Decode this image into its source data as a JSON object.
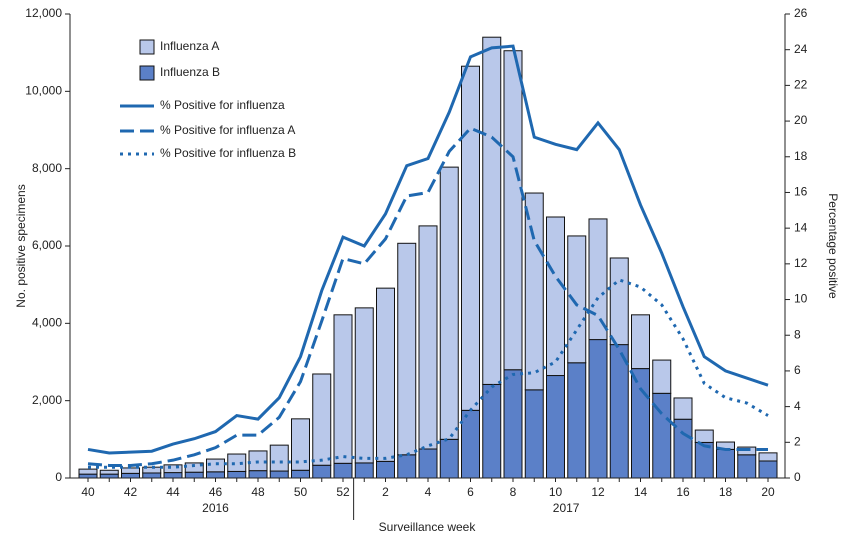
{
  "chart_data": {
    "type": "bar_line",
    "xlabel": "Surveillance week",
    "ylabel": "No. positive specimens",
    "y2label": "Percentage positive",
    "year_labels": [
      "2016",
      "2017"
    ],
    "categories": [
      "40",
      null,
      "42",
      null,
      "44",
      null,
      "46",
      null,
      "48",
      null,
      "50",
      null,
      "52",
      null,
      "2",
      null,
      "4",
      null,
      "6",
      null,
      "8",
      null,
      "10",
      null,
      "12",
      null,
      "14",
      null,
      "16",
      null,
      "18",
      null,
      "20"
    ],
    "ylim": [
      0,
      12000
    ],
    "yticks": [
      0,
      {
        "value": 2000,
        "label": "2,000"
      },
      {
        "value": 4000,
        "label": "4,000"
      },
      {
        "value": 6000,
        "label": "6,000"
      },
      {
        "value": 8000,
        "label": "8,000"
      },
      {
        "value": 10000,
        "label": "10,000"
      },
      {
        "value": 12000,
        "label": "12,000"
      }
    ],
    "y2lim": [
      0,
      26
    ],
    "y2ticks": [
      0,
      2,
      4,
      6,
      8,
      10,
      12,
      14,
      16,
      18,
      20,
      22,
      24,
      26
    ],
    "series": [
      {
        "name": "Influenza A",
        "kind": "bar",
        "stack": 1,
        "color": "#b9c8ea",
        "values": [
          130,
          100,
          140,
          150,
          200,
          240,
          330,
          450,
          510,
          670,
          1330,
          2360,
          3840,
          4010,
          4480,
          5470,
          5770,
          7040,
          8900,
          8980,
          8250,
          5090,
          4100,
          3280,
          3120,
          2240,
          1390,
          860,
          550,
          320,
          190,
          200,
          210
        ]
      },
      {
        "name": "Influenza B",
        "kind": "bar",
        "stack": 0,
        "color": "#5b80c8",
        "values": [
          100,
          100,
          120,
          130,
          140,
          150,
          160,
          170,
          190,
          180,
          200,
          330,
          380,
          390,
          430,
          600,
          750,
          1000,
          1750,
          2420,
          2800,
          2280,
          2650,
          2980,
          3580,
          3450,
          2830,
          2190,
          1520,
          920,
          740,
          600,
          440
        ]
      },
      {
        "name": "% Positive for influenza",
        "kind": "line",
        "axis": "y2",
        "dash": "solid",
        "color": "#1f68b0",
        "values": [
          1.6,
          1.4,
          1.45,
          1.5,
          1.9,
          2.2,
          2.6,
          3.5,
          3.3,
          4.5,
          6.8,
          10.5,
          13.5,
          13.0,
          14.8,
          17.5,
          17.9,
          20.5,
          23.6,
          24.1,
          24.2,
          19.1,
          18.7,
          18.4,
          19.9,
          18.4,
          15.3,
          12.6,
          9.6,
          6.8,
          6.0,
          5.6,
          5.2
        ]
      },
      {
        "name": "% Positive for influenza A",
        "kind": "line",
        "axis": "y2",
        "dash": "dashed",
        "color": "#1f68b0",
        "values": [
          0.8,
          0.7,
          0.7,
          0.8,
          1.0,
          1.3,
          1.7,
          2.4,
          2.4,
          3.4,
          5.4,
          8.8,
          12.3,
          12.0,
          13.4,
          15.8,
          16.0,
          18.3,
          19.6,
          19.1,
          18.0,
          13.3,
          11.3,
          9.7,
          9.1,
          7.2,
          5.0,
          3.6,
          2.5,
          1.8,
          1.6,
          1.6,
          1.6
        ]
      },
      {
        "name": "%  Positive for influenza B",
        "kind": "line",
        "axis": "y2",
        "dash": "dotted",
        "color": "#1f68b0",
        "values": [
          0.6,
          0.6,
          0.6,
          0.6,
          0.6,
          0.7,
          0.8,
          0.8,
          0.9,
          0.9,
          0.9,
          1.0,
          1.2,
          1.1,
          1.1,
          1.3,
          1.8,
          2.2,
          3.8,
          5.1,
          5.8,
          5.9,
          6.5,
          8.3,
          10.1,
          11.1,
          10.7,
          9.7,
          7.8,
          5.3,
          4.5,
          4.2,
          3.5
        ]
      }
    ],
    "legend": "upper-left"
  }
}
